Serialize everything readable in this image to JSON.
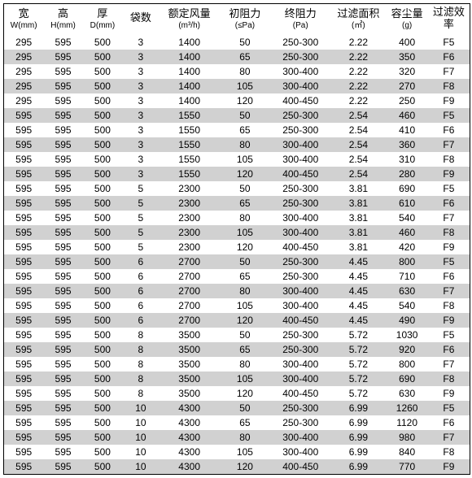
{
  "table": {
    "background_color": "#ffffff",
    "stripe_color": "#d1d1d1",
    "border_color": "#000000",
    "text_color": "#000000",
    "font_size": 12,
    "header_font_size_cn": 13,
    "header_font_size_sub": 10,
    "columns": [
      {
        "cn": "宽",
        "sub": "W(mm)"
      },
      {
        "cn": "高",
        "sub": "H(mm)"
      },
      {
        "cn": "厚",
        "sub": "D(mm)"
      },
      {
        "cn": "袋数",
        "sub": ""
      },
      {
        "cn": "额定风量",
        "sub": "(m³/h)"
      },
      {
        "cn": "初阻力",
        "sub": "(≤Pa)"
      },
      {
        "cn": "终阻力",
        "sub": "(Pa)"
      },
      {
        "cn": "过滤面积",
        "sub": "(㎡)"
      },
      {
        "cn": "容尘量",
        "sub": "(g)"
      },
      {
        "cn": "过滤效率",
        "sub": ""
      }
    ],
    "rows": [
      [
        "295",
        "595",
        "500",
        "3",
        "1400",
        "50",
        "250-300",
        "2.22",
        "400",
        "F5"
      ],
      [
        "295",
        "595",
        "500",
        "3",
        "1400",
        "65",
        "250-300",
        "2.22",
        "350",
        "F6"
      ],
      [
        "295",
        "595",
        "500",
        "3",
        "1400",
        "80",
        "300-400",
        "2.22",
        "320",
        "F7"
      ],
      [
        "295",
        "595",
        "500",
        "3",
        "1400",
        "105",
        "300-400",
        "2.22",
        "270",
        "F8"
      ],
      [
        "295",
        "595",
        "500",
        "3",
        "1400",
        "120",
        "400-450",
        "2.22",
        "250",
        "F9"
      ],
      [
        "595",
        "595",
        "500",
        "3",
        "1550",
        "50",
        "250-300",
        "2.54",
        "460",
        "F5"
      ],
      [
        "595",
        "595",
        "500",
        "3",
        "1550",
        "65",
        "250-300",
        "2.54",
        "410",
        "F6"
      ],
      [
        "595",
        "595",
        "500",
        "3",
        "1550",
        "80",
        "300-400",
        "2.54",
        "360",
        "F7"
      ],
      [
        "595",
        "595",
        "500",
        "3",
        "1550",
        "105",
        "300-400",
        "2.54",
        "310",
        "F8"
      ],
      [
        "595",
        "595",
        "500",
        "3",
        "1550",
        "120",
        "400-450",
        "2.54",
        "280",
        "F9"
      ],
      [
        "595",
        "595",
        "500",
        "5",
        "2300",
        "50",
        "250-300",
        "3.81",
        "690",
        "F5"
      ],
      [
        "595",
        "595",
        "500",
        "5",
        "2300",
        "65",
        "250-300",
        "3.81",
        "610",
        "F6"
      ],
      [
        "595",
        "595",
        "500",
        "5",
        "2300",
        "80",
        "300-400",
        "3.81",
        "540",
        "F7"
      ],
      [
        "595",
        "595",
        "500",
        "5",
        "2300",
        "105",
        "300-400",
        "3.81",
        "460",
        "F8"
      ],
      [
        "595",
        "595",
        "500",
        "5",
        "2300",
        "120",
        "400-450",
        "3.81",
        "420",
        "F9"
      ],
      [
        "595",
        "595",
        "500",
        "6",
        "2700",
        "50",
        "250-300",
        "4.45",
        "800",
        "F5"
      ],
      [
        "595",
        "595",
        "500",
        "6",
        "2700",
        "65",
        "250-300",
        "4.45",
        "710",
        "F6"
      ],
      [
        "595",
        "595",
        "500",
        "6",
        "2700",
        "80",
        "300-400",
        "4.45",
        "630",
        "F7"
      ],
      [
        "595",
        "595",
        "500",
        "6",
        "2700",
        "105",
        "300-400",
        "4.45",
        "540",
        "F8"
      ],
      [
        "595",
        "595",
        "500",
        "6",
        "2700",
        "120",
        "400-450",
        "4.45",
        "490",
        "F9"
      ],
      [
        "595",
        "595",
        "500",
        "8",
        "3500",
        "50",
        "250-300",
        "5.72",
        "1030",
        "F5"
      ],
      [
        "595",
        "595",
        "500",
        "8",
        "3500",
        "65",
        "250-300",
        "5.72",
        "920",
        "F6"
      ],
      [
        "595",
        "595",
        "500",
        "8",
        "3500",
        "80",
        "300-400",
        "5.72",
        "800",
        "F7"
      ],
      [
        "595",
        "595",
        "500",
        "8",
        "3500",
        "105",
        "300-400",
        "5.72",
        "690",
        "F8"
      ],
      [
        "595",
        "595",
        "500",
        "8",
        "3500",
        "120",
        "400-450",
        "5.72",
        "630",
        "F9"
      ],
      [
        "595",
        "595",
        "500",
        "10",
        "4300",
        "50",
        "250-300",
        "6.99",
        "1260",
        "F5"
      ],
      [
        "595",
        "595",
        "500",
        "10",
        "4300",
        "65",
        "250-300",
        "6.99",
        "1120",
        "F6"
      ],
      [
        "595",
        "595",
        "500",
        "10",
        "4300",
        "80",
        "300-400",
        "6.99",
        "980",
        "F7"
      ],
      [
        "595",
        "595",
        "500",
        "10",
        "4300",
        "105",
        "300-400",
        "6.99",
        "840",
        "F8"
      ],
      [
        "595",
        "595",
        "500",
        "10",
        "4300",
        "120",
        "400-450",
        "6.99",
        "770",
        "F9"
      ]
    ]
  }
}
